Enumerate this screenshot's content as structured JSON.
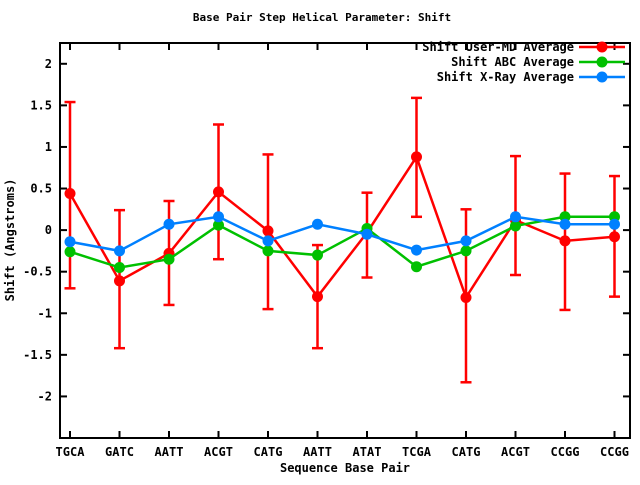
{
  "chart_data": {
    "type": "line",
    "title": "Base Pair Step Helical Parameter: Shift",
    "xlabel": "Sequence Base Pair",
    "ylabel": "Shift (Angstroms)",
    "categories": [
      "TGCA",
      "GATC",
      "AATT",
      "ACGT",
      "CATG",
      "AATT",
      "ATAT",
      "TCGA",
      "CATG",
      "ACGT",
      "CCGG",
      "CCGG"
    ],
    "ylim": [
      -2.5,
      2.25
    ],
    "yticks": [
      2,
      1.5,
      1,
      0.5,
      0,
      -0.5,
      -1,
      -1.5,
      -2
    ],
    "ytick_labels": [
      "2",
      "1.5",
      "1",
      "0.5",
      "0",
      "-0.5",
      "-1",
      "-1.5",
      "-2"
    ],
    "grid": false,
    "legend_position": "top-right-inside",
    "marker": "circle",
    "axis_color": "#000000",
    "background_color": "#ffffff",
    "series": [
      {
        "name": "Shift User-MD Average",
        "color": "#ff0000",
        "values": [
          0.44,
          -0.61,
          -0.28,
          0.46,
          -0.01,
          -0.8,
          -0.03,
          0.88,
          -0.81,
          0.12,
          -0.13,
          -0.08
        ],
        "err_low": [
          -0.7,
          -1.42,
          -0.9,
          -0.35,
          -0.95,
          -1.42,
          -0.57,
          0.16,
          -1.83,
          -0.54,
          -0.96,
          -0.8
        ],
        "err_high": [
          1.54,
          0.24,
          0.35,
          1.27,
          0.91,
          -0.18,
          0.45,
          1.59,
          0.25,
          0.89,
          0.68,
          0.65
        ]
      },
      {
        "name": "Shift ABC Average",
        "color": "#00c000",
        "values": [
          -0.26,
          -0.45,
          -0.35,
          0.06,
          -0.25,
          -0.3,
          0.02,
          -0.44,
          -0.25,
          0.05,
          0.16,
          0.16
        ]
      },
      {
        "name": "Shift X-Ray Average",
        "color": "#0080ff",
        "values": [
          -0.14,
          -0.25,
          0.07,
          0.16,
          -0.13,
          0.07,
          -0.05,
          -0.24,
          -0.13,
          0.16,
          0.07,
          0.07
        ]
      }
    ]
  }
}
